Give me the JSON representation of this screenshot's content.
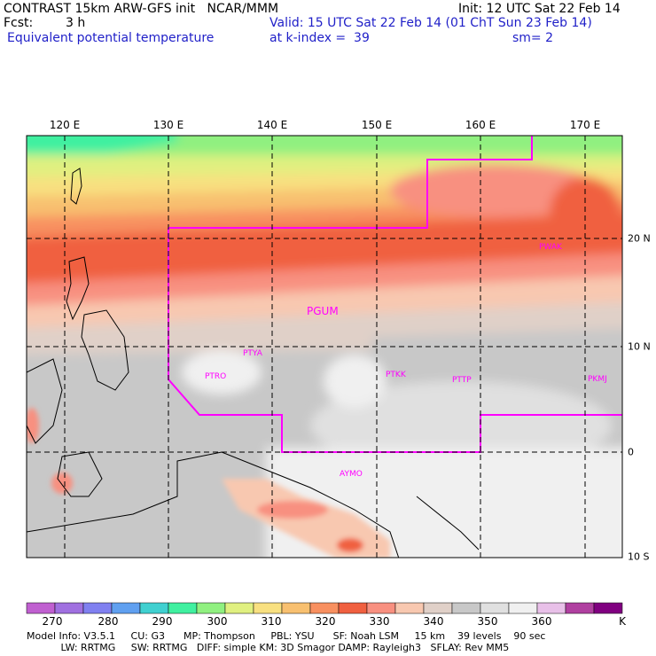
{
  "header": {
    "line1_left": "CONTRAST 15km ARW-GFS init   NCAR/MMM",
    "line1_right": "Init: 12 UTC Sat 22 Feb 14",
    "fcst_label": "Fcst:",
    "fcst_value": "3 h",
    "valid": "Valid: 15 UTC Sat 22 Feb 14 (01 ChT Sun 23 Feb 14)",
    "field": "Equivalent potential temperature",
    "level": "at k-index =  39",
    "smooth": "sm= 2"
  },
  "map": {
    "lon_labels": [
      "120 E",
      "130 E",
      "140 E",
      "150 E",
      "160 E",
      "170 E"
    ],
    "lat_labels": [
      "20 N",
      "10 N",
      "0",
      "10 S"
    ],
    "stations": [
      "PTYA",
      "PTRO",
      "PGUM",
      "PTKK",
      "PTTP",
      "PKMJ",
      "PWAK",
      "AYMO"
    ],
    "colors": {
      "boundary": "#ff00ff",
      "grid": "#000000"
    }
  },
  "colorbar": {
    "labels": [
      "270",
      "280",
      "290",
      "300",
      "310",
      "320",
      "330",
      "340",
      "350",
      "360",
      "K"
    ],
    "colors": [
      "#c060d0",
      "#a070e0",
      "#8080f0",
      "#60a0f0",
      "#40d0d0",
      "#40f0a0",
      "#90f080",
      "#e0f080",
      "#f8e080",
      "#f8c070",
      "#f89060",
      "#f06040",
      "#f89080",
      "#f8c8b0",
      "#e0d0c8",
      "#c8c8c8",
      "#e0e0e0",
      "#f0f0f0",
      "#e8c0e8",
      "#b040a0",
      "#800080"
    ]
  },
  "footer": {
    "line1": "Model Info: V3.5.1     CU: G3      MP: Thompson     PBL: YSU      SF: Noah LSM     15 km    39 levels    90 sec",
    "line2": "           LW: RRTMG     SW: RRTMG   DIFF: simple KM: 3D Smagor DAMP: Rayleigh3   SFLAY: Rev MM5"
  }
}
